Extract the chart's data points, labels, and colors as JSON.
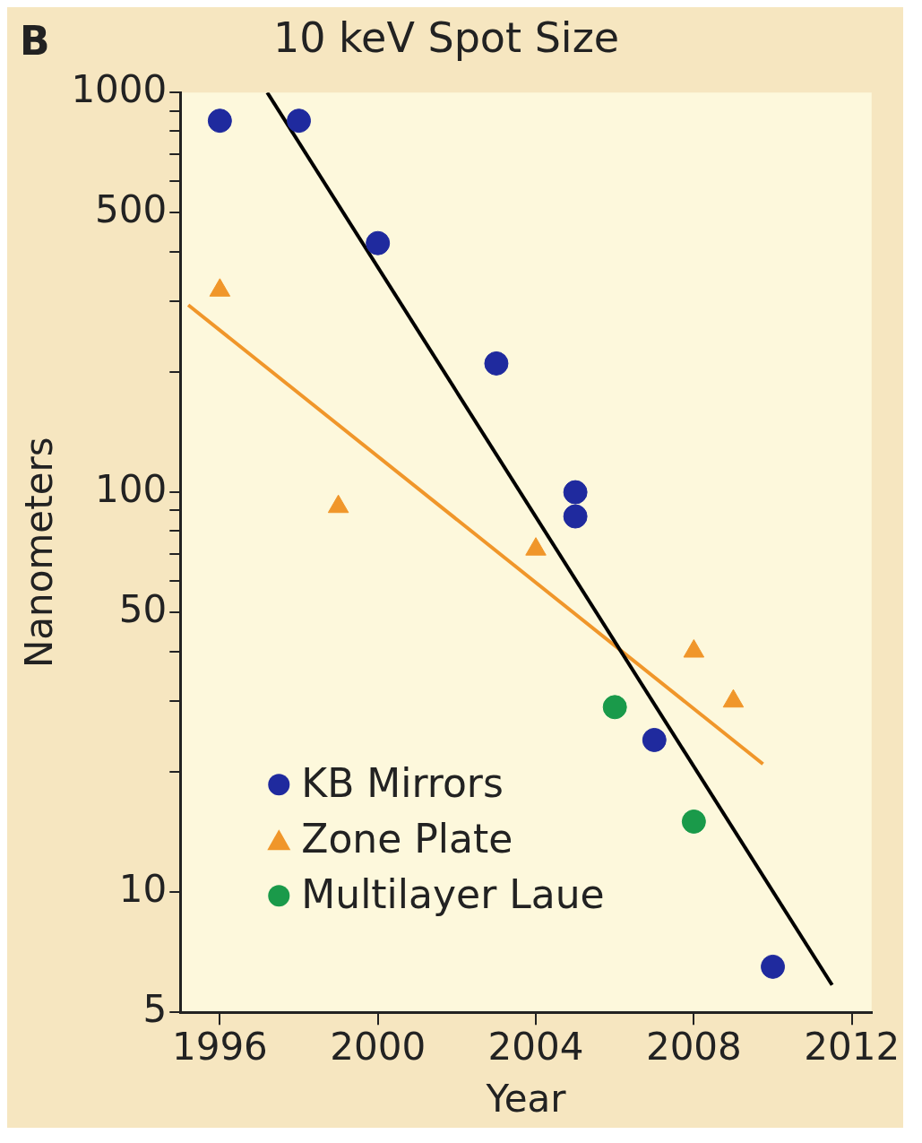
{
  "chart_data": {
    "type": "scatter",
    "title": "10 keV Spot Size",
    "xlabel": "Year",
    "ylabel": "Nanometers",
    "annotations": [
      "B"
    ],
    "log": "y",
    "xlim": [
      1995,
      2012.5
    ],
    "xticks": [
      1996,
      2000,
      2004,
      2008,
      2012
    ],
    "ylim": [
      5,
      1000
    ],
    "yticks": [
      5,
      10,
      {
        "value": 20,
        "label": null
      },
      {
        "value": 30,
        "label": null
      },
      {
        "value": 40,
        "label": null
      },
      50,
      {
        "value": 60,
        "label": null
      },
      {
        "value": 70,
        "label": null
      },
      {
        "value": 80,
        "label": null
      },
      {
        "value": 90,
        "label": null
      },
      100,
      {
        "value": 200,
        "label": null
      },
      {
        "value": 300,
        "label": null
      },
      {
        "value": 400,
        "label": null
      },
      500,
      {
        "value": 600,
        "label": null
      },
      {
        "value": 700,
        "label": null
      },
      {
        "value": 800,
        "label": null
      },
      {
        "value": 900,
        "label": null
      },
      1000
    ],
    "grid": false,
    "legend": "bottom left",
    "series": [
      {
        "name": "KB Mirrors",
        "color": "#1f2a9e",
        "marker": "circle",
        "x": [
          1996,
          1998,
          2000,
          2003,
          2005,
          2005,
          2007,
          2010
        ],
        "values": [
          850,
          850,
          420,
          210,
          100,
          87,
          24,
          6.5
        ]
      },
      {
        "name": "Zone Plate",
        "color": "#f0962a",
        "marker": "triangle",
        "x": [
          1996,
          1999,
          2004,
          2008,
          2009
        ],
        "values": [
          320,
          92,
          72,
          40,
          30
        ]
      },
      {
        "name": "Multilayer Laue",
        "color": "#1a9a4a",
        "marker": "circle",
        "x": [
          2006,
          2008
        ],
        "values": [
          29,
          15
        ]
      },
      {
        "type": "line",
        "color": "#000000",
        "marker": "none",
        "x": [
          1997.2,
          2011.5
        ],
        "values": [
          1000,
          5.85
        ]
      },
      {
        "type": "line",
        "color": "#f0962a",
        "marker": "none",
        "x": [
          1995.2,
          2009.75
        ],
        "values": [
          294,
          20.9
        ]
      }
    ]
  }
}
